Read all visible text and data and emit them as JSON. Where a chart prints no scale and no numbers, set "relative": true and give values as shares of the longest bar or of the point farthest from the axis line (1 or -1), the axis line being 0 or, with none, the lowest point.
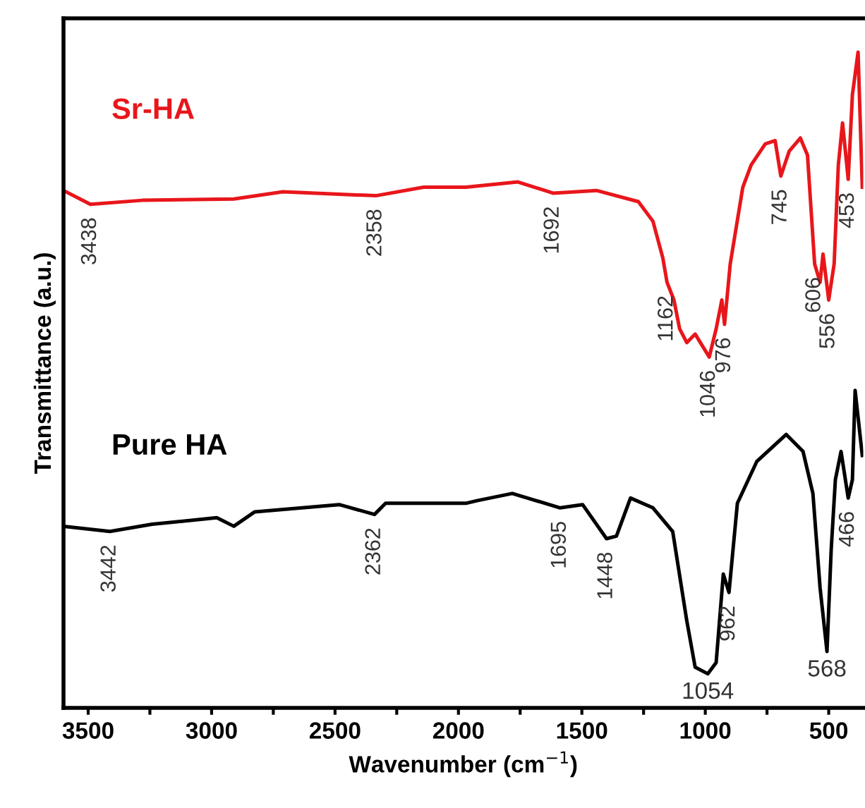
{
  "chart_data": {
    "type": "line",
    "relative": true,
    "xlabel": "Wavenumber (cm$^{−1}$)",
    "ylabel": "Transmittance (a.u.)",
    "xlim": [
      3600,
      360
    ],
    "xticks": [
      3500,
      {
        "value": 3250,
        "label": null
      },
      3000,
      {
        "value": 2750,
        "label": null
      },
      2500,
      {
        "value": 2250,
        "label": null
      },
      2000,
      {
        "value": 1750,
        "label": null
      },
      1500,
      {
        "value": 1250,
        "label": null
      },
      1000,
      {
        "value": 750,
        "label": null
      },
      500
    ],
    "grid": false,
    "legend": false,
    "marker": "none",
    "line_style": "solid",
    "series": [
      {
        "name": "Sr-HA",
        "color": "#e8161b",
        "x": [
          3600,
          3491,
          3281,
          2910,
          2711,
          2335,
          2141,
          1970,
          1759,
          1617,
          1441,
          1271,
          1212,
          1172,
          1155,
          1127,
          1104,
          1075,
          1041,
          984,
          956,
          933,
          922,
          899,
          848,
          814,
          757,
          717,
          694,
          660,
          615,
          586,
          557,
          535,
          523,
          500,
          478,
          461,
          444,
          421,
          404,
          381,
          364
        ],
        "values": [
          0.789,
          0.768,
          0.774,
          0.776,
          0.787,
          0.781,
          0.794,
          0.794,
          0.802,
          0.785,
          0.789,
          0.772,
          0.742,
          0.686,
          0.649,
          0.622,
          0.578,
          0.557,
          0.57,
          0.535,
          0.578,
          0.622,
          0.585,
          0.677,
          0.794,
          0.828,
          0.86,
          0.865,
          0.811,
          0.849,
          0.869,
          0.843,
          0.677,
          0.649,
          0.692,
          0.622,
          0.677,
          0.828,
          0.892,
          0.806,
          0.935,
          1.0,
          0.794
        ]
      },
      {
        "name": "Pure HA",
        "color": "#000000",
        "x": [
          3600,
          3412,
          3241,
          2979,
          2910,
          2825,
          2483,
          2340,
          2295,
          1970,
          1925,
          1782,
          1588,
          1497,
          1400,
          1360,
          1303,
          1212,
          1132,
          1075,
          1041,
          990,
          956,
          927,
          904,
          870,
          791,
          672,
          604,
          564,
          535,
          507,
          490,
          473,
          450,
          421,
          404,
          393,
          364
        ],
        "values": [
          0.277,
          0.269,
          0.28,
          0.29,
          0.277,
          0.299,
          0.31,
          0.295,
          0.312,
          0.312,
          0.316,
          0.327,
          0.305,
          0.31,
          0.258,
          0.262,
          0.32,
          0.305,
          0.269,
          0.133,
          0.062,
          0.052,
          0.069,
          0.204,
          0.176,
          0.312,
          0.376,
          0.417,
          0.391,
          0.327,
          0.183,
          0.086,
          0.241,
          0.348,
          0.391,
          0.32,
          0.348,
          0.484,
          0.385
        ]
      }
    ],
    "annotations": [
      {
        "text": "3438",
        "x": 3491,
        "y": 0.768
      },
      {
        "text": "2358",
        "x": 2335,
        "y": 0.781
      },
      {
        "text": "1692",
        "x": 1617,
        "y": 0.785
      },
      {
        "text": "1162",
        "x": 1155,
        "y": 0.649
      },
      {
        "text": "1046",
        "x": 984,
        "y": 0.535
      },
      {
        "text": "976",
        "x": 922,
        "y": 0.585
      },
      {
        "text": "745",
        "x": 694,
        "y": 0.811
      },
      {
        "text": "606",
        "x": 557,
        "y": 0.677
      },
      {
        "text": "556",
        "x": 500,
        "y": 0.622
      },
      {
        "text": "453",
        "x": 421,
        "y": 0.806
      },
      {
        "text": "3442",
        "x": 3412,
        "y": 0.269
      },
      {
        "text": "2362",
        "x": 2340,
        "y": 0.295
      },
      {
        "text": "1695",
        "x": 1588,
        "y": 0.305
      },
      {
        "text": "1448",
        "x": 1400,
        "y": 0.258
      },
      {
        "text": "1054",
        "x": 990,
        "y": 0.052
      },
      {
        "text": "962",
        "x": 904,
        "y": 0.176
      },
      {
        "text": "568",
        "x": 507,
        "y": 0.086
      },
      {
        "text": "466",
        "x": 421,
        "y": 0.32
      }
    ]
  }
}
